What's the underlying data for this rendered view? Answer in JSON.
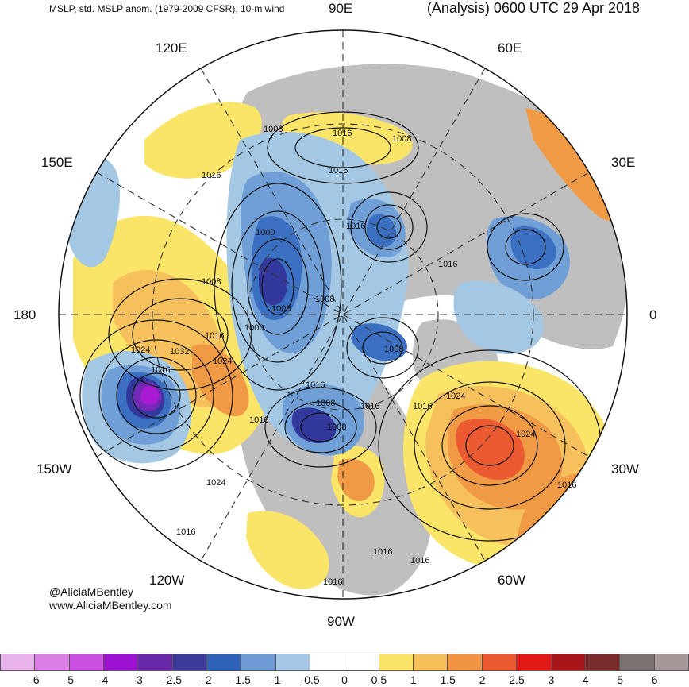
{
  "header": {
    "left_title": "MSLP, std. MSLP anom. (1979-2009 CFSR), 10-m wind",
    "right_title": "(Analysis) 0600 UTC 29 Apr 2018"
  },
  "map": {
    "longitude_labels": {
      "90E": "90E",
      "120E": "120E",
      "60E": "60E",
      "150E": "150E",
      "30E": "30E",
      "180": "180",
      "0": "0",
      "150W": "150W",
      "30W": "30W",
      "120W": "120W",
      "60W": "60W",
      "90W": "90W"
    },
    "isobar_labels": [
      "1008",
      "1016",
      "1008",
      "1016",
      "1016",
      "1000",
      "1016",
      "1016",
      "1008",
      "1008",
      "1000",
      "1008",
      "1016",
      "1008",
      "1032",
      "1024",
      "1024",
      "1016",
      "1016",
      "1008",
      "1016",
      "1016",
      "1024",
      "1016",
      "1008",
      "1024",
      "1024",
      "1016",
      "1016",
      "1016",
      "1016",
      "1016"
    ],
    "colors": {
      "land_gray": "#bfbfbf",
      "ocean": "#ffffff",
      "yellow": "#fbe569",
      "light_orange": "#f6c15c",
      "orange": "#f19a45",
      "red_orange": "#eb5a31",
      "light_blue": "#a4c8e4",
      "mid_blue": "#6f9fd6",
      "blue": "#3b6fc2",
      "dark_blue": "#33389c",
      "purple": "#7428b6",
      "magenta": "#a81bd2"
    }
  },
  "credit": {
    "handle": "@AliciaMBentley",
    "url": "www.AliciaMBentley.com"
  },
  "colorbar": {
    "ticks": [
      "-6",
      "-5",
      "-4",
      "-3",
      "-2.5",
      "-2",
      "-1.5",
      "-1",
      "-0.5",
      "0",
      "0.5",
      "1",
      "1.5",
      "2",
      "2.5",
      "3",
      "4",
      "5",
      "6"
    ],
    "colors": [
      "#e7b3ea",
      "#dd80e6",
      "#cb4fe0",
      "#9d11d0",
      "#6927aa",
      "#3e3a9a",
      "#2e62b8",
      "#6f9bd5",
      "#a6c8e7",
      "#ffffff",
      "#ffffff",
      "#fbe568",
      "#f5c05a",
      "#f19545",
      "#eb5a31",
      "#e11a18",
      "#a8151a",
      "#7b2d2d",
      "#7d7272",
      "#a69898"
    ]
  }
}
